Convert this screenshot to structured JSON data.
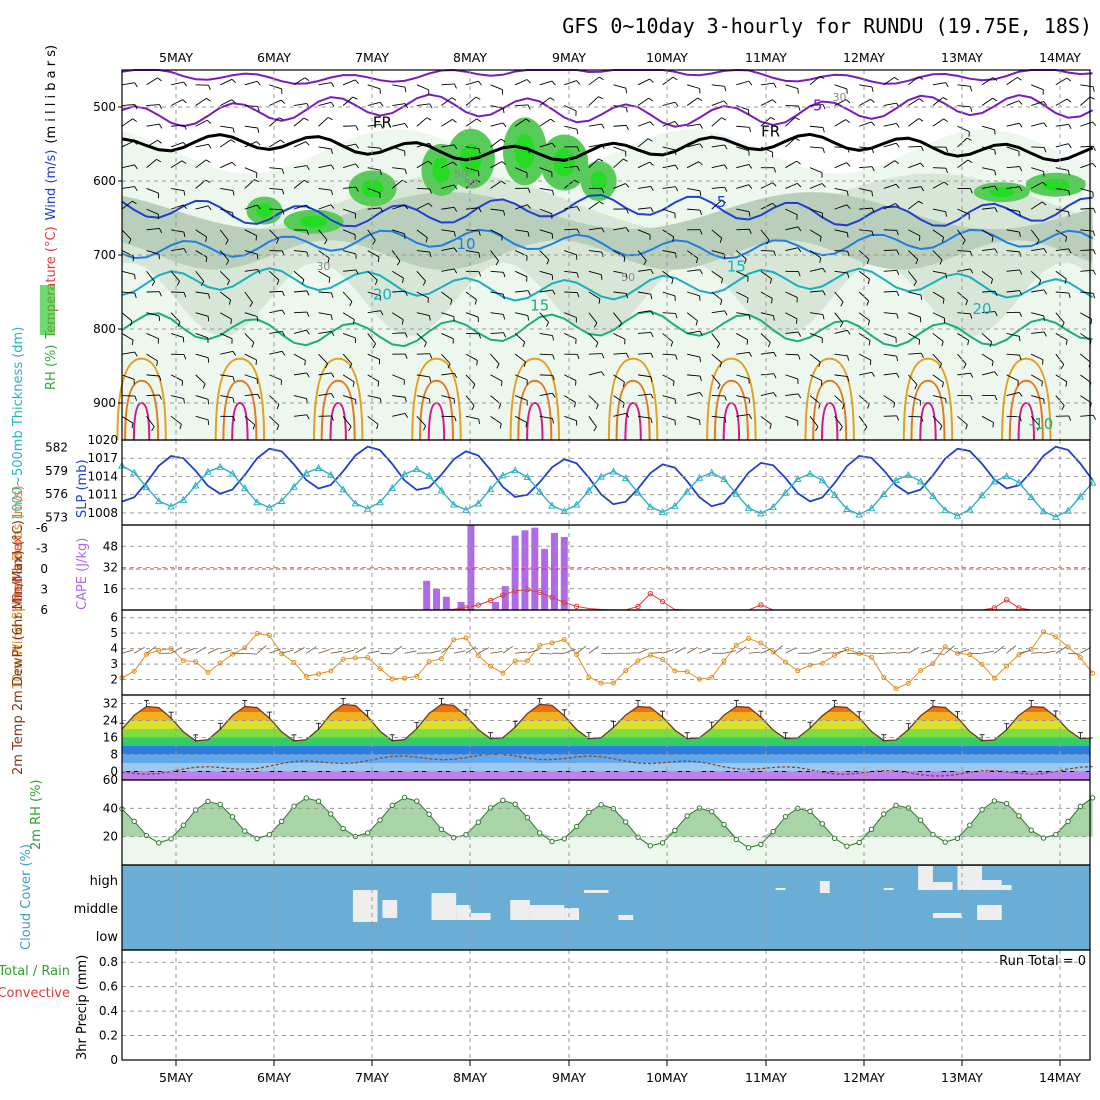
{
  "title": "GFS 0~10day 3-hourly for RUNDU (19.75E, 18S)",
  "colors": {
    "temp_contour": "#7a1bbf",
    "wind_label": "#000000",
    "rh_fill": "#33cc33",
    "slp_line": "#1f3fcf",
    "thickness_line": "#2ab2c4",
    "lifted_index": "#e03a3a",
    "cape_bar": "#b06ae8",
    "wind_speed": "#e09020",
    "rh2m": "#2ea02e",
    "cloud_bg": "#6aaed6",
    "cloud_fill": "#eeeeee",
    "precip_conv": "#e03a3a"
  },
  "chart_data": [
    {
      "id": "upper_air",
      "type": "heatmap",
      "x_dates": [
        "5MAY",
        "6MAY",
        "7MAY",
        "8MAY",
        "9MAY",
        "10MAY",
        "11MAY",
        "12MAY",
        "13MAY",
        "14MAY"
      ],
      "ylabel_parts": [
        "RH (%)",
        "Temperature (°C)",
        "Wind (m/s)",
        "(m i l l i b a r s)"
      ],
      "yticks": [
        500,
        600,
        700,
        800,
        900
      ],
      "ylim": [
        450,
        950
      ],
      "contour_labels": [
        "FR",
        "FR",
        "-5",
        "5",
        "10",
        "15",
        "20",
        "15",
        "20",
        "-10",
        "30",
        "50",
        "50",
        "50",
        "30"
      ]
    },
    {
      "id": "slp_thickness",
      "type": "line",
      "ylabel_left": "1000~500mb Thickness (dm)",
      "ylabel_right": "SLP (mb)",
      "yticks_left": [
        573,
        576,
        579,
        582
      ],
      "yticks_right": [
        1008,
        1011,
        1014,
        1017,
        1020
      ],
      "ylim_left": [
        572,
        583
      ],
      "ylim_right": [
        1006,
        1020
      ]
    },
    {
      "id": "cape_li",
      "type": "bar",
      "ylabel_left": "Lifted Index",
      "ylabel_right": "CAPE (J/kg)",
      "yticks_li": [
        "-6",
        "-3",
        "0",
        "3",
        "6"
      ],
      "yticks_cape": [
        16,
        32,
        48
      ],
      "ylim_cape": [
        0,
        64
      ],
      "cape_values": [
        22,
        16,
        10,
        6,
        64,
        6,
        18,
        56,
        60,
        62,
        46,
        58,
        55
      ],
      "cape_x_days": [
        3.0,
        3.1,
        3.2,
        3.35,
        3.45,
        3.7,
        3.8,
        3.9,
        4.0,
        4.1,
        4.2,
        4.3,
        4.4
      ]
    },
    {
      "id": "wind10m",
      "type": "line",
      "ylabel": "10m Wind Speed & Barbs (m/s)",
      "yticks": [
        2,
        3,
        4,
        5,
        6
      ],
      "ylim": [
        1,
        6.5
      ]
    },
    {
      "id": "temp2m",
      "type": "area",
      "ylabel": "2m Temp 2m DewPt (6hr Min/Max) (°C)",
      "yticks": [
        0,
        8,
        16,
        24,
        32
      ],
      "ylim": [
        -4,
        36
      ],
      "tmax_daily": [
        31,
        31,
        32,
        32,
        32,
        31,
        31,
        31,
        31,
        31
      ],
      "tmin_daily": [
        14,
        14,
        14,
        15,
        15,
        15,
        15,
        14,
        14,
        15
      ]
    },
    {
      "id": "rh2m",
      "type": "area",
      "ylabel": "2m RH (%)",
      "yticks": [
        20,
        40,
        60
      ],
      "ylim": [
        0,
        60
      ]
    },
    {
      "id": "cloud",
      "type": "bar",
      "ylabel": "Cloud Cover (%)",
      "levels": [
        "high",
        "middle",
        "low"
      ]
    },
    {
      "id": "precip",
      "type": "bar",
      "ylabel_parts": [
        "Total / Rain",
        "Convective",
        "3hr Precip (mm)"
      ],
      "yticks": [
        0,
        0.2,
        0.4,
        0.6,
        0.8
      ],
      "ylim": [
        0,
        0.9
      ],
      "run_total_label": "Run Total = 0"
    }
  ]
}
